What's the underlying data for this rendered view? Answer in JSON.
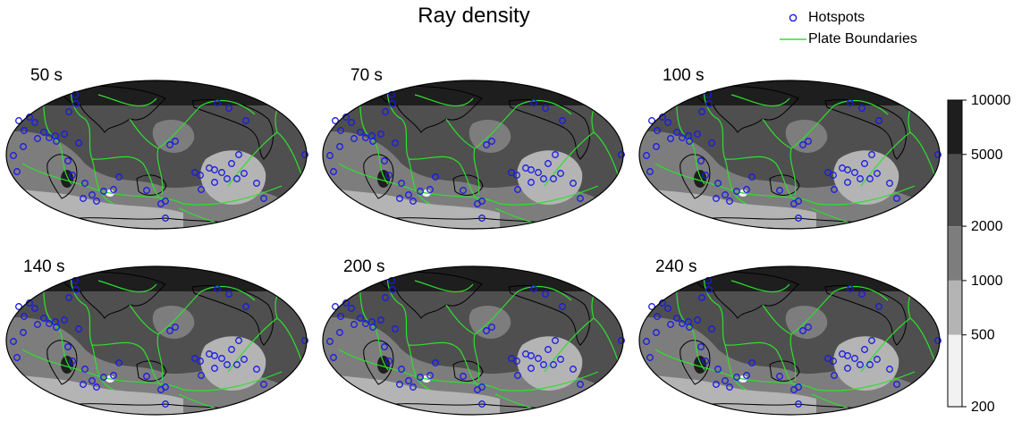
{
  "chart_data": {
    "type": "heatmap",
    "title": "Ray density",
    "projection": "Hammer-Aitoff (global)",
    "legend": {
      "placement": "top-right",
      "entries": [
        {
          "label": "Hotspots",
          "marker": "open-circle",
          "color": "#1a1ae6"
        },
        {
          "label": "Plate Boundaries",
          "marker": "line",
          "color": "#2ee02e"
        }
      ]
    },
    "colorbar": {
      "scale": "log",
      "tick_labels": [
        "10000",
        "5000",
        "2000",
        "1000",
        "500",
        "200"
      ],
      "levels": [
        {
          "range": [
            5000,
            10000
          ],
          "color": "#1e1e1e"
        },
        {
          "range": [
            2000,
            5000
          ],
          "color": "#4f4f4f"
        },
        {
          "range": [
            1000,
            2000
          ],
          "color": "#7d7d7d"
        },
        {
          "range": [
            500,
            1000
          ],
          "color": "#b4b4b4"
        },
        {
          "range": [
            200,
            500
          ],
          "color": "#f2f2f2"
        }
      ]
    },
    "panels": [
      {
        "label": "50 s"
      },
      {
        "label": "70 s"
      },
      {
        "label": "100 s"
      },
      {
        "label": "140 s"
      },
      {
        "label": "200 s"
      },
      {
        "label": "240 s"
      }
    ]
  }
}
